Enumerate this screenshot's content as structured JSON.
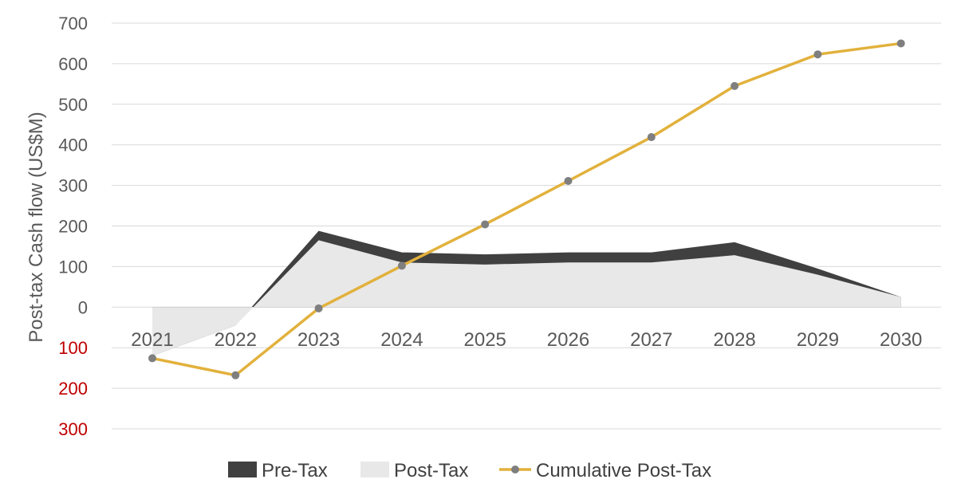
{
  "chart_data": {
    "type": "area",
    "categories": [
      "2021",
      "2022",
      "2023",
      "2024",
      "2025",
      "2026",
      "2027",
      "2028",
      "2029",
      "2030"
    ],
    "series": [
      {
        "name": "Pre-Tax",
        "kind": "area",
        "color": "#404040",
        "values": [
          -120,
          -45,
          188,
          135,
          130,
          135,
          135,
          160,
          95,
          25
        ]
      },
      {
        "name": "Post-Tax",
        "kind": "area",
        "color": "#e8e8e8",
        "values": [
          -120,
          -45,
          165,
          110,
          105,
          110,
          110,
          128,
          80,
          25
        ]
      },
      {
        "name": "Cumulative Post-Tax",
        "kind": "line",
        "color": "#e2b13c",
        "marker_color": "#7f7f7f",
        "values": [
          -126,
          -168,
          -3,
          102,
          204,
          311,
          419,
          545,
          623,
          650
        ]
      }
    ],
    "ylabel": "Post-tax Cash flow (US$M)",
    "ylim": [
      -300,
      700
    ],
    "yticks": [
      {
        "value": 700,
        "label": "700"
      },
      {
        "value": 600,
        "label": "600"
      },
      {
        "value": 500,
        "label": "500"
      },
      {
        "value": 400,
        "label": "400"
      },
      {
        "value": 300,
        "label": "300"
      },
      {
        "value": 200,
        "label": "200"
      },
      {
        "value": 100,
        "label": "100"
      },
      {
        "value": 0,
        "label": "0"
      },
      {
        "value": -100,
        "label": "100"
      },
      {
        "value": -200,
        "label": "200"
      },
      {
        "value": -300,
        "label": "300"
      }
    ],
    "positive_tick_color": "#595959",
    "negative_tick_color": "#c00000",
    "grid": true,
    "legend_position": "bottom"
  }
}
